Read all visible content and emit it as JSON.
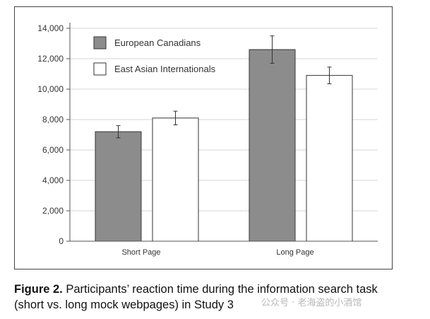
{
  "chart_data": {
    "type": "bar",
    "title": "",
    "xlabel": "",
    "ylabel": "",
    "ylim": [
      0,
      14000
    ],
    "yticks": [
      0,
      2000,
      4000,
      6000,
      8000,
      10000,
      12000,
      14000
    ],
    "ytick_labels": [
      "0",
      "2,000",
      "4,000",
      "6,000",
      "8,000",
      "10,000",
      "12,000",
      "14,000"
    ],
    "categories": [
      "Short Page",
      "Long Page"
    ],
    "series": [
      {
        "name": "European Canadians",
        "color": "#8c8c8c",
        "values": [
          7200,
          12600
        ],
        "errors": [
          400,
          900
        ]
      },
      {
        "name": "East Asian Internationals",
        "color": "#ffffff",
        "values": [
          8100,
          10900
        ],
        "errors": [
          450,
          550
        ]
      }
    ],
    "grid": true,
    "legend": "top-left"
  },
  "caption": {
    "label": "Figure 2.",
    "text": "Participants’ reaction time during the information search task (short vs. long mock webpages) in Study 3"
  },
  "watermark": "公众号 · 老海盗的小酒馆"
}
